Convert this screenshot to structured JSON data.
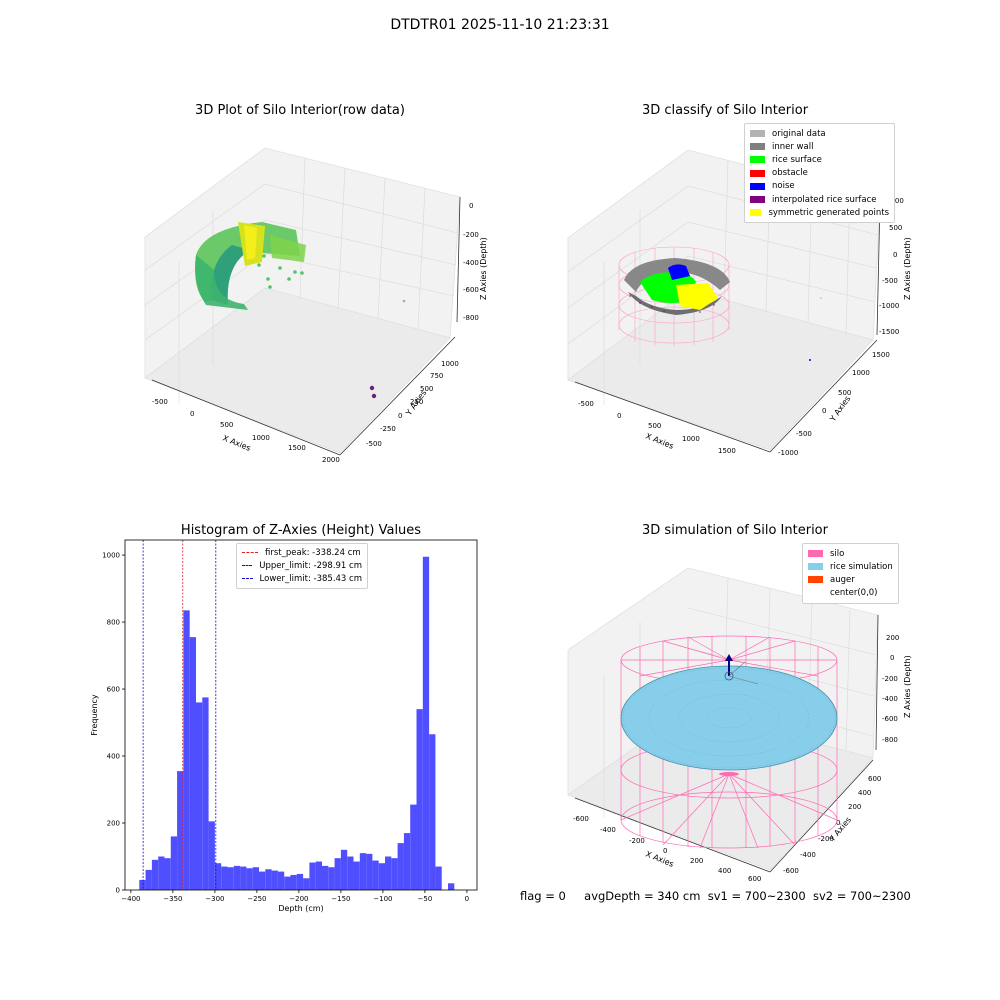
{
  "figure": {
    "title": "DTDTR01 2025-11-10 21:23:31",
    "status": {
      "flag": "flag = 0",
      "avg_depth": "avgDepth = 340 cm",
      "sv1": "sv1 = 700~2300",
      "sv2": "sv2 = 700~2300"
    }
  },
  "colors": {
    "histogram_bar": "#4f4fff",
    "first_peak": "#e02020",
    "limit_lines": "#1010c0",
    "original": "#b3b3b3",
    "inner_wall": "#808080",
    "rice_surface": "#00ff00",
    "obstacle": "#ff0000",
    "noise": "#0000ff",
    "interpolated": "#800080",
    "symmetric": "#ffff00",
    "silo": "#ff69b4",
    "rice_sim": "#87ceeb",
    "auger": "#ff4500"
  },
  "chart_data": [
    {
      "type": "scatter",
      "title": "3D Plot of Silo Interior(row data)",
      "xlabel": "X Axies",
      "ylabel": "Y Axies",
      "zlabel": "Z Axies (Depth)",
      "x_ticks": [
        "-500",
        "0",
        "500",
        "1000",
        "1500",
        "2000"
      ],
      "y_ticks": [
        "-250",
        "0",
        "250",
        "500",
        "750",
        "1000"
      ],
      "y_ticks_neg": "-500",
      "z_ticks": [
        "0",
        "-200",
        "-400",
        "-600",
        "-800"
      ]
    },
    {
      "type": "scatter",
      "title": "3D classify of Silo Interior",
      "xlabel": "X Axies",
      "ylabel": "Y Axies",
      "zlabel": "Z Axies (Depth)",
      "x_ticks": [
        "-500",
        "0",
        "500",
        "1000",
        "1500"
      ],
      "y_ticks": [
        "-1000",
        "-500",
        "0",
        "500",
        "1000",
        "1500"
      ],
      "z_ticks": [
        "1000",
        "500",
        "0",
        "-500",
        "-1000",
        "-1500"
      ],
      "legend": [
        "original data",
        "inner wall",
        "rice surface",
        "obstacle",
        "noise",
        "interpolated rice surface",
        "symmetric generated points"
      ]
    },
    {
      "type": "bar",
      "title": "Histogram of Z-Axies (Height) Values",
      "xlabel": "Depth (cm)",
      "ylabel": "Frequency",
      "xlim": [
        -407,
        12
      ],
      "ylim": [
        0,
        1045
      ],
      "x_ticks": [
        -400,
        -350,
        -300,
        -250,
        -200,
        -150,
        -100,
        -50,
        0
      ],
      "y_ticks": [
        0,
        200,
        400,
        600,
        800,
        1000
      ],
      "bin_width": 7.5,
      "bin_start": -390,
      "values": [
        30,
        60,
        90,
        100,
        95,
        160,
        355,
        835,
        755,
        560,
        575,
        205,
        80,
        70,
        68,
        72,
        70,
        65,
        68,
        55,
        62,
        58,
        55,
        40,
        45,
        48,
        35,
        82,
        85,
        72,
        68,
        95,
        120,
        100,
        85,
        110,
        108,
        88,
        80,
        100,
        95,
        140,
        170,
        255,
        540,
        995,
        465,
        70,
        0,
        20
      ],
      "vlines": [
        {
          "label": "first_peak: -338.24 cm",
          "x": -338.24
        },
        {
          "label": "Upper_limit: -298.91 cm",
          "x": -298.91
        },
        {
          "label": "Lower_limit: -385.43 cm",
          "x": -385.43
        }
      ]
    },
    {
      "type": "scatter",
      "title": "3D simulation of Silo Interior",
      "xlabel": "X Axies",
      "ylabel": "Y Axies",
      "zlabel": "Z Axies (Depth)",
      "x_ticks": [
        "-600",
        "-400",
        "-200",
        "0",
        "200",
        "400",
        "600"
      ],
      "y_ticks": [
        "-600",
        "-400",
        "-200",
        "0",
        "200",
        "400",
        "600"
      ],
      "z_ticks": [
        "200",
        "0",
        "-200",
        "-400",
        "-600",
        "-800"
      ],
      "legend": [
        "silo",
        "rice simulation",
        "auger",
        "center(0,0)"
      ]
    }
  ]
}
